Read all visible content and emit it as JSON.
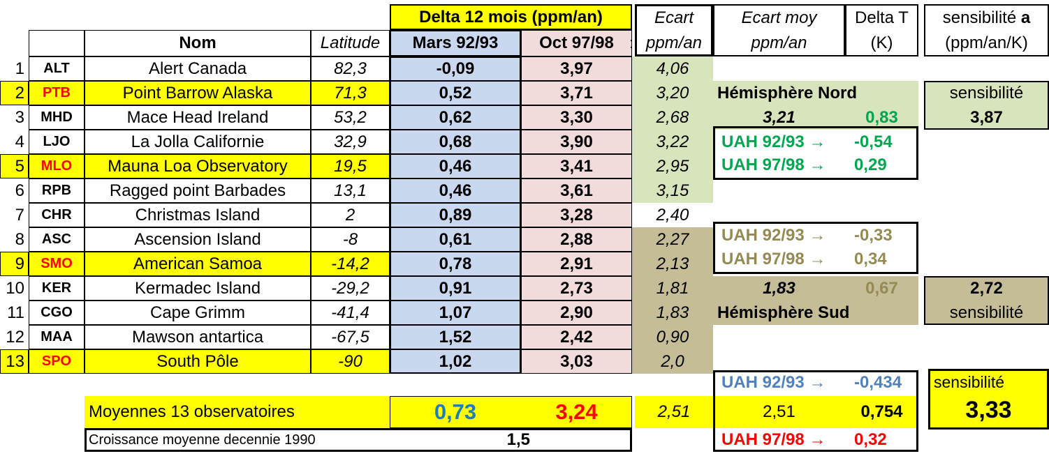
{
  "header": {
    "delta_title": "Delta 12 mois (ppm/an)",
    "ecart": [
      "Ecart",
      "ppm/an"
    ],
    "ecart_moy": [
      "Ecart moy",
      "ppm/an"
    ],
    "delta_t": [
      "Delta T",
      "(K)"
    ],
    "sensibilite": [
      "sensibilité ",
      "a",
      "(ppm/an/K)"
    ],
    "nom": "Nom",
    "latitude": "Latitude",
    "mars": "Mars 92/93",
    "oct": "Oct 97/98",
    "colon_fragment": ":"
  },
  "rows": [
    {
      "n": "1",
      "code": "ALT",
      "name": "Alert   Canada",
      "lat": "82,3",
      "mars": "-0,09",
      "oct": "3,97",
      "ecart": "4,06",
      "hl": false
    },
    {
      "n": "2",
      "code": "PTB",
      "name": "Point Barrow   Alaska",
      "lat": "71,3",
      "mars": "0,52",
      "oct": "3,71",
      "ecart": "3,20",
      "hl": true
    },
    {
      "n": "3",
      "code": "MHD",
      "name": "Mace Head Ireland",
      "lat": "53,2",
      "mars": "0,62",
      "oct": "3,30",
      "ecart": "2,68",
      "hl": false
    },
    {
      "n": "4",
      "code": "LJO",
      "name": "La Jolla   Californie",
      "lat": "32,9",
      "mars": "0,68",
      "oct": "3,90",
      "ecart": "3,22",
      "hl": false
    },
    {
      "n": "5",
      "code": "MLO",
      "name": "Mauna Loa Observatory",
      "lat": "19,5",
      "mars": "0,46",
      "oct": "3,41",
      "ecart": "2,95",
      "hl": true
    },
    {
      "n": "6",
      "code": "RPB",
      "name": "Ragged point Barbades",
      "lat": "13,1",
      "mars": "0,46",
      "oct": "3,61",
      "ecart": "3,15",
      "hl": false
    },
    {
      "n": "7",
      "code": "CHR",
      "name": "Christmas Island",
      "lat": "2",
      "mars": "0,89",
      "oct": "3,28",
      "ecart": "2,40",
      "hl": false
    },
    {
      "n": "8",
      "code": "ASC",
      "name": "Ascension Island",
      "lat": "-8",
      "mars": "0,61",
      "oct": "2,88",
      "ecart": "2,27",
      "hl": false
    },
    {
      "n": "9",
      "code": "SMO",
      "name": "American Samoa",
      "lat": "-14,2",
      "mars": "0,78",
      "oct": "2,91",
      "ecart": "2,13",
      "hl": true
    },
    {
      "n": "10",
      "code": "KER",
      "name": "Kermadec Island",
      "lat": "-29,2",
      "mars": "0,91",
      "oct": "2,73",
      "ecart": "1,81",
      "hl": false
    },
    {
      "n": "11",
      "code": "CGO",
      "name": "Cape Grimm",
      "lat": "-41,4",
      "mars": "1,07",
      "oct": "2,90",
      "ecart": "1,83",
      "hl": false
    },
    {
      "n": "12",
      "code": "MAA",
      "name": "Mawson antartica",
      "lat": "-67,5",
      "mars": "1,52",
      "oct": "2,42",
      "ecart": "0,90",
      "hl": false
    },
    {
      "n": "13",
      "code": "SPO",
      "name": "South Pôle",
      "lat": "-90",
      "mars": "1,02",
      "oct": "3,03",
      "ecart": "2,0",
      "hl": true
    }
  ],
  "north": {
    "title": "Hémisphère Nord",
    "ecart_moy": "3,21",
    "delta_t": "0,83",
    "sens_label": "sensibilité",
    "sens_value": "3,87",
    "uah1_label": "UAH 92/93 →",
    "uah1_value": "-0,54",
    "uah2_label": "UAH 97/98 →",
    "uah2_value": "0,29"
  },
  "south": {
    "title": "Hémisphère Sud",
    "ecart_moy": "1,83",
    "delta_t": "0,67",
    "sens_label": "sensibilité",
    "sens_value": "2,72",
    "uah1_label": "UAH 92/93 →",
    "uah1_value": "-0,33",
    "uah2_label": "UAH 97/98 →",
    "uah2_value": "0,34"
  },
  "global": {
    "uah1_label": "UAH 92/93 →",
    "uah1_value": "-0,434",
    "sens_label": "sensibilité",
    "sens_value": "3,33",
    "ecart_moy": "2,51",
    "delta_t": "0,754",
    "uah2_label": "UAH 97/98 →",
    "uah2_value": "0,32"
  },
  "summary": {
    "label": "Moyennes 13 observatoires",
    "mars": "0,73",
    "oct": "3,24",
    "ecart": "2,51",
    "croissance_label": "Croissance moyenne decennie 1990",
    "croissance_value": "1,5"
  },
  "colors": {
    "yellow": "#ffff00",
    "blue_fill": "#c9d8ee",
    "pink_fill": "#f2dcdb",
    "green_fill": "#d8e4bc",
    "tan_fill": "#c4bd97",
    "green_text": "#00a650",
    "tan_text": "#948a54",
    "blue_text": "#4f81bd",
    "red_text": "#ff0000",
    "teal_text": "#1f7fb5"
  }
}
